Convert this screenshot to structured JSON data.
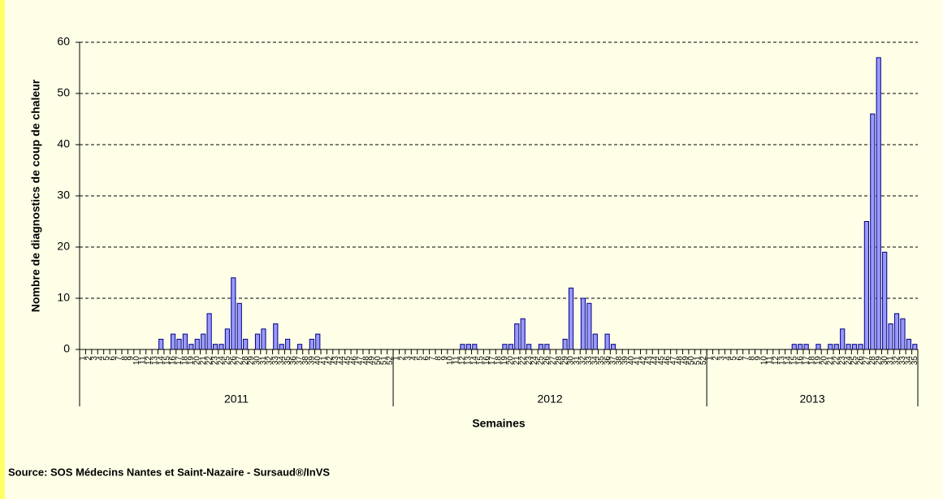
{
  "chart_data": {
    "type": "bar",
    "y_label": "Nombre de diagnostics de coup de chaleur",
    "x_label": "Semaines",
    "source": "Source: SOS Médecins Nantes et Saint-Nazaire - Sursaud®/InVS",
    "ylim": [
      0,
      60
    ],
    "yticks": [
      0,
      10,
      20,
      30,
      40,
      50,
      60
    ],
    "grid": true,
    "color": "#9999ff",
    "groups": [
      {
        "name": "2011",
        "categories": [
          "1",
          "2",
          "3",
          "4",
          "5",
          "6",
          "7",
          "8",
          "9",
          "10",
          "11",
          "12",
          "13",
          "14",
          "15",
          "16",
          "17",
          "18",
          "19",
          "20",
          "21",
          "22",
          "23",
          "24",
          "25",
          "26",
          "27",
          "28",
          "29",
          "30",
          "31",
          "32",
          "33",
          "34",
          "35",
          "36",
          "37",
          "38",
          "39",
          "40",
          "41",
          "42",
          "43",
          "44",
          "45",
          "46",
          "47",
          "48",
          "49",
          "50",
          "51",
          "52"
        ],
        "values": [
          0,
          0,
          0,
          0,
          0,
          0,
          0,
          0,
          0,
          0,
          0,
          0,
          0,
          2,
          0,
          3,
          2,
          3,
          1,
          2,
          3,
          7,
          1,
          1,
          4,
          14,
          9,
          2,
          0,
          3,
          4,
          0,
          5,
          1,
          2,
          0,
          1,
          0,
          2,
          3,
          0,
          0,
          0,
          0,
          0,
          0,
          0,
          0,
          0,
          0,
          0,
          0
        ]
      },
      {
        "name": "2012",
        "categories": [
          "1",
          "2",
          "3",
          "4",
          "5",
          "6",
          "7",
          "8",
          "9",
          "10",
          "11",
          "12",
          "13",
          "14",
          "15",
          "16",
          "17",
          "18",
          "19",
          "20",
          "21",
          "22",
          "23",
          "24",
          "25",
          "26",
          "27",
          "28",
          "29",
          "30",
          "31",
          "32",
          "33",
          "34",
          "35",
          "36",
          "37",
          "38",
          "39",
          "40",
          "41",
          "42",
          "43",
          "44",
          "45",
          "46",
          "47",
          "48",
          "49",
          "50",
          "51",
          "52"
        ],
        "values": [
          0,
          0,
          0,
          0,
          0,
          0,
          0,
          0,
          0,
          0,
          0,
          1,
          1,
          1,
          0,
          0,
          0,
          0,
          1,
          1,
          5,
          6,
          1,
          0,
          1,
          1,
          0,
          0,
          2,
          12,
          0,
          10,
          9,
          3,
          0,
          3,
          1,
          0,
          0,
          0,
          0,
          0,
          0,
          0,
          0,
          0,
          0,
          0,
          0,
          0,
          0,
          0
        ]
      },
      {
        "name": "2013",
        "categories": [
          "1",
          "2",
          "3",
          "4",
          "5",
          "6",
          "7",
          "8",
          "9",
          "10",
          "11",
          "12",
          "13",
          "14",
          "15",
          "16",
          "17",
          "18",
          "19",
          "20",
          "21",
          "22",
          "23",
          "24",
          "25",
          "26",
          "27",
          "28",
          "29",
          "30",
          "31",
          "32",
          "33",
          "34",
          "35"
        ],
        "values": [
          0,
          0,
          0,
          0,
          0,
          0,
          0,
          0,
          0,
          0,
          0,
          0,
          0,
          0,
          1,
          1,
          1,
          0,
          1,
          0,
          1,
          1,
          4,
          1,
          1,
          1,
          25,
          46,
          57,
          19,
          5,
          7,
          6,
          2,
          1
        ]
      }
    ]
  }
}
